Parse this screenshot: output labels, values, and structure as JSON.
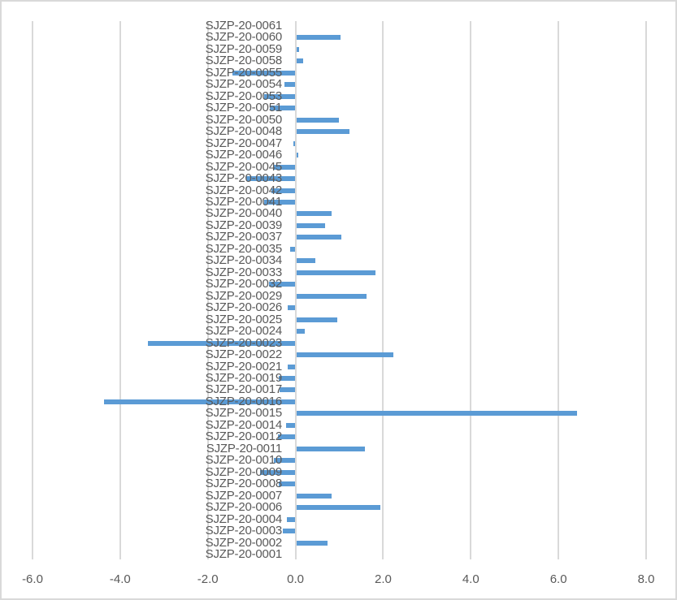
{
  "chart_data": {
    "type": "bar",
    "orientation": "horizontal",
    "title": "",
    "xlabel": "",
    "ylabel": "",
    "xlim": [
      -6.0,
      8.0
    ],
    "x_ticks": [
      "-6.0",
      "-4.0",
      "-2.0",
      "0.0",
      "2.0",
      "4.0",
      "6.0",
      "8.0"
    ],
    "x_tick_values": [
      -6,
      -4,
      -2,
      0,
      2,
      4,
      6,
      8
    ],
    "grid": "vertical",
    "legend": "none",
    "bar_color": "#5b9bd5",
    "categories": [
      "SJZP-20-0061",
      "SJZP-20-0060",
      "SJZP-20-0059",
      "SJZP-20-0058",
      "SJZP-20-0055",
      "SJZP-20-0054",
      "SJZP-20-0053",
      "SJZP-20-0051",
      "SJZP-20-0050",
      "SJZP-20-0048",
      "SJZP-20-0047",
      "SJZP-20-0046",
      "SJZP-20-0045",
      "SJZP-20-0043",
      "SJZP-20-0042",
      "SJZP-20-0041",
      "SJZP-20-0040",
      "SJZP-20-0039",
      "SJZP-20-0037",
      "SJZP-20-0035",
      "SJZP-20-0034",
      "SJZP-20-0033",
      "SJZP-20-0032",
      "SJZP-20-0029",
      "SJZP-20-0026",
      "SJZP-20-0025",
      "SJZP-20-0024",
      "SJZP-20-0023",
      "SJZP-20-0022",
      "SJZP-20-0021",
      "SJZP-20-0019",
      "SJZP-20-0017",
      "SJZP-20-0016",
      "SJZP-20-0015",
      "SJZP-20-0014",
      "SJZP-20-0012",
      "SJZP-20-0011",
      "SJZP-20-0010",
      "SJZP-20-0009",
      "SJZP-20-0008",
      "SJZP-20-0007",
      "SJZP-20-0006",
      "SJZP-20-0004",
      "SJZP-20-0003",
      "SJZP-20-0002",
      "SJZP-20-0001"
    ],
    "values": [
      0.0,
      1.02,
      0.09,
      0.17,
      -1.43,
      -0.26,
      -0.72,
      -0.59,
      1.0,
      1.24,
      -0.05,
      0.06,
      -0.5,
      -1.13,
      -0.54,
      -0.72,
      0.82,
      0.67,
      1.04,
      -0.13,
      0.45,
      1.82,
      -0.61,
      1.63,
      -0.17,
      0.96,
      0.21,
      -3.36,
      2.23,
      -0.17,
      -0.39,
      -0.37,
      -4.36,
      6.42,
      -0.22,
      -0.4,
      1.58,
      -0.49,
      -0.8,
      -0.39,
      0.82,
      1.93,
      -0.19,
      -0.28,
      0.74,
      0.0
    ]
  }
}
